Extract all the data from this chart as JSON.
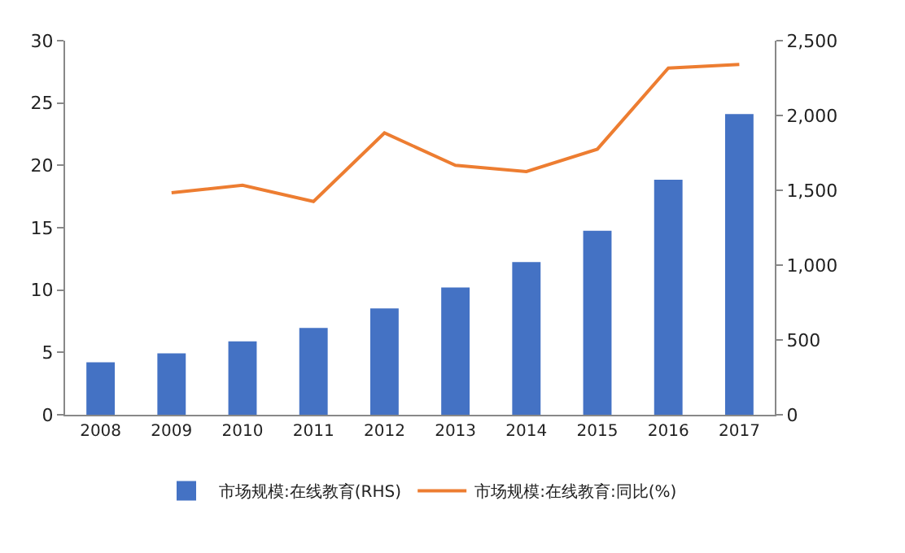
{
  "chart_data": {
    "type": "bar",
    "categories": [
      "2008",
      "2009",
      "2010",
      "2011",
      "2012",
      "2013",
      "2014",
      "2015",
      "2016",
      "2017"
    ],
    "series": [
      {
        "name": "市场规模:在线教育(RHS)",
        "axis": "y2",
        "color": "#4472c4",
        "values": [
          350,
          410,
          490,
          580,
          710,
          850,
          1020,
          1230,
          1570,
          2010
        ]
      },
      {
        "name": "市场规模:在线教育:同比(%)",
        "type": "line",
        "color": "#ed7d31",
        "values": [
          null,
          17.8,
          18.4,
          17.1,
          22.6,
          20.0,
          19.5,
          21.3,
          27.8,
          28.1
        ]
      }
    ],
    "ylim": [
      0,
      30
    ],
    "yticks": [
      0,
      5,
      10,
      15,
      20,
      25,
      30
    ],
    "y2lim": [
      0,
      2500
    ],
    "y2ticks": [
      0,
      500,
      {
        "value": 1000,
        "label": "1,000"
      },
      {
        "value": 1500,
        "label": "1,500"
      },
      {
        "value": 2000,
        "label": "2,000"
      },
      {
        "value": 2500,
        "label": "2,500"
      }
    ],
    "grid": false,
    "legend": "bottom",
    "marker": "none"
  }
}
